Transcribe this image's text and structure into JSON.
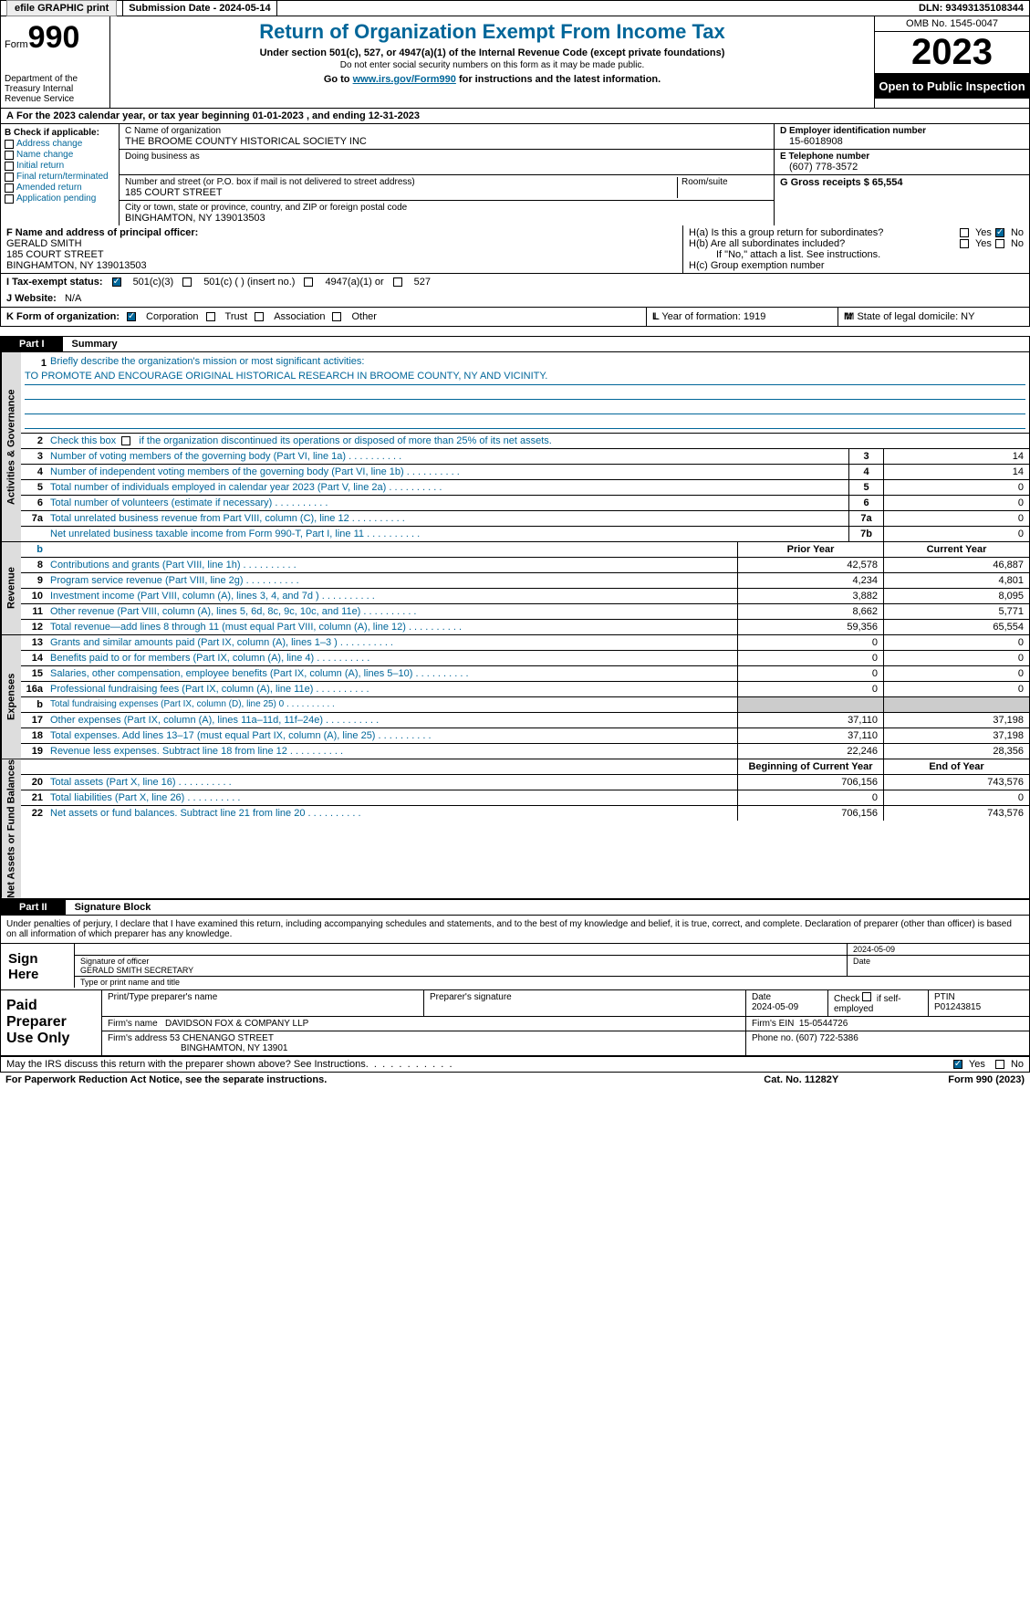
{
  "top": {
    "efile": "efile GRAPHIC print",
    "sub_label": "Submission Date - 2024-05-14",
    "dln": "DLN: 93493135108344"
  },
  "header": {
    "form_label": "Form",
    "form_num": "990",
    "dept": "Department of the Treasury Internal Revenue Service",
    "title": "Return of Organization Exempt From Income Tax",
    "subtitle": "Under section 501(c), 527, or 4947(a)(1) of the Internal Revenue Code (except private foundations)",
    "note1": "Do not enter social security numbers on this form as it may be made public.",
    "goto_pre": "Go to ",
    "goto_link": "www.irs.gov/Form990",
    "goto_post": " for instructions and the latest information.",
    "omb": "OMB No. 1545-0047",
    "year": "2023",
    "inspection": "Open to Public Inspection"
  },
  "row_a": {
    "a": "A",
    "text": "For the 2023 calendar year, or tax year beginning 01-01-2023    , and ending 12-31-2023"
  },
  "box_b": {
    "label": "B Check if applicable:",
    "items": [
      "Address change",
      "Name change",
      "Initial return",
      "Final return/terminated",
      "Amended return",
      "Application pending"
    ]
  },
  "box_c": {
    "name_label": "C Name of organization",
    "name": "THE BROOME COUNTY HISTORICAL SOCIETY INC",
    "dba_label": "Doing business as",
    "addr_label": "Number and street (or P.O. box if mail is not delivered to street address)",
    "addr": "185 COURT STREET",
    "room_label": "Room/suite",
    "city_label": "City or town, state or province, country, and ZIP or foreign postal code",
    "city": "BINGHAMTON, NY  139013503"
  },
  "box_d": {
    "label": "D Employer identification number",
    "val": "15-6018908"
  },
  "box_e": {
    "label": "E Telephone number",
    "val": "(607) 778-3572"
  },
  "box_g": {
    "label": "G Gross receipts $ 65,554"
  },
  "box_f": {
    "label": "F  Name and address of principal officer:",
    "l1": "GERALD SMITH",
    "l2": "185 COURT STREET",
    "l3": "BINGHAMTON, NY  139013503"
  },
  "box_h": {
    "ha": "H(a)  Is this a group return for subordinates?",
    "hb": "H(b)  Are all subordinates included?",
    "hb_note": "If \"No,\" attach a list. See instructions.",
    "hc": "H(c)  Group exemption number",
    "yes": "Yes",
    "no": "No"
  },
  "row_i": {
    "label": "I    Tax-exempt status:",
    "o1": "501(c)(3)",
    "o2": "501(c) (  ) (insert no.)",
    "o3": "4947(a)(1) or",
    "o4": "527"
  },
  "row_j": {
    "label": "J    Website:",
    "val": "N/A"
  },
  "row_k": {
    "label": "K Form of organization:",
    "o1": "Corporation",
    "o2": "Trust",
    "o3": "Association",
    "o4": "Other"
  },
  "row_l": {
    "label": "L Year of formation: 1919"
  },
  "row_m": {
    "label": "M State of legal domicile: NY"
  },
  "part1": {
    "tab": "Part I",
    "title": "Summary"
  },
  "sections": [
    {
      "side": "Activities & Governance",
      "rows": [
        {
          "type": "mission",
          "num": "1",
          "label": "Briefly describe the organization's mission or most significant activities:",
          "val": "TO PROMOTE AND ENCOURAGE ORIGINAL HISTORICAL RESEARCH IN BROOME COUNTY, NY AND VICINITY."
        },
        {
          "type": "check",
          "num": "2",
          "label": "Check this box      if the organization discontinued its operations or disposed of more than 25% of its net assets."
        },
        {
          "type": "single",
          "num": "3",
          "label": "Number of voting members of the governing body (Part VI, line 1a)",
          "box": "3",
          "val": "14"
        },
        {
          "type": "single",
          "num": "4",
          "label": "Number of independent voting members of the governing body (Part VI, line 1b)",
          "box": "4",
          "val": "14"
        },
        {
          "type": "single",
          "num": "5",
          "label": "Total number of individuals employed in calendar year 2023 (Part V, line 2a)",
          "box": "5",
          "val": "0"
        },
        {
          "type": "single",
          "num": "6",
          "label": "Total number of volunteers (estimate if necessary)",
          "box": "6",
          "val": "0"
        },
        {
          "type": "single",
          "num": "7a",
          "label": "Total unrelated business revenue from Part VIII, column (C), line 12",
          "box": "7a",
          "val": "0"
        },
        {
          "type": "single",
          "num": "",
          "label": "Net unrelated business taxable income from Form 990-T, Part I, line 11",
          "box": "7b",
          "val": "0"
        }
      ]
    },
    {
      "side": "Revenue",
      "hdr_b": "b",
      "hdr_prior": "Prior Year",
      "hdr_curr": "Current Year",
      "rows": [
        {
          "num": "8",
          "label": "Contributions and grants (Part VIII, line 1h)",
          "prior": "42,578",
          "curr": "46,887"
        },
        {
          "num": "9",
          "label": "Program service revenue (Part VIII, line 2g)",
          "prior": "4,234",
          "curr": "4,801"
        },
        {
          "num": "10",
          "label": "Investment income (Part VIII, column (A), lines 3, 4, and 7d )",
          "prior": "3,882",
          "curr": "8,095"
        },
        {
          "num": "11",
          "label": "Other revenue (Part VIII, column (A), lines 5, 6d, 8c, 9c, 10c, and 11e)",
          "prior": "8,662",
          "curr": "5,771"
        },
        {
          "num": "12",
          "label": "Total revenue—add lines 8 through 11 (must equal Part VIII, column (A), line 12)",
          "prior": "59,356",
          "curr": "65,554"
        }
      ]
    },
    {
      "side": "Expenses",
      "rows": [
        {
          "num": "13",
          "label": "Grants and similar amounts paid (Part IX, column (A), lines 1–3 )",
          "prior": "0",
          "curr": "0"
        },
        {
          "num": "14",
          "label": "Benefits paid to or for members (Part IX, column (A), line 4)",
          "prior": "0",
          "curr": "0"
        },
        {
          "num": "15",
          "label": "Salaries, other compensation, employee benefits (Part IX, column (A), lines 5–10)",
          "prior": "0",
          "curr": "0"
        },
        {
          "num": "16a",
          "label": "Professional fundraising fees (Part IX, column (A), line 11e)",
          "prior": "0",
          "curr": "0"
        },
        {
          "num": "b",
          "label": "Total fundraising expenses (Part IX, column (D), line 25) 0",
          "prior": "",
          "curr": "",
          "shade": true,
          "small": true
        },
        {
          "num": "17",
          "label": "Other expenses (Part IX, column (A), lines 11a–11d, 11f–24e)",
          "prior": "37,110",
          "curr": "37,198"
        },
        {
          "num": "18",
          "label": "Total expenses. Add lines 13–17 (must equal Part IX, column (A), line 25)",
          "prior": "37,110",
          "curr": "37,198"
        },
        {
          "num": "19",
          "label": "Revenue less expenses. Subtract line 18 from line 12",
          "prior": "22,246",
          "curr": "28,356"
        }
      ]
    },
    {
      "side": "Net Assets or Fund Balances",
      "hdr_prior": "Beginning of Current Year",
      "hdr_curr": "End of Year",
      "rows": [
        {
          "num": "20",
          "label": "Total assets (Part X, line 16)",
          "prior": "706,156",
          "curr": "743,576"
        },
        {
          "num": "21",
          "label": "Total liabilities (Part X, line 26)",
          "prior": "0",
          "curr": "0"
        },
        {
          "num": "22",
          "label": "Net assets or fund balances. Subtract line 21 from line 20",
          "prior": "706,156",
          "curr": "743,576"
        }
      ]
    }
  ],
  "part2": {
    "tab": "Part II",
    "title": "Signature Block"
  },
  "sig_text": "Under penalties of perjury, I declare that I have examined this return, including accompanying schedules and statements, and to the best of my knowledge and belief, it is true, correct, and complete. Declaration of preparer (other than officer) is based on all information of which preparer has any knowledge.",
  "sign": {
    "left": "Sign Here",
    "date": "2024-05-09",
    "sig_label": "Signature of officer",
    "name": "GERALD SMITH  SECRETARY",
    "date_label": "Date",
    "type_label": "Type or print name and title"
  },
  "prep": {
    "left": "Paid Preparer Use Only",
    "h1": "Print/Type preparer's name",
    "h2": "Preparer's signature",
    "h3": "Date",
    "h3v": "2024-05-09",
    "h4": "Check       if self-employed",
    "h5": "PTIN",
    "h5v": "P01243815",
    "firm_label": "Firm's name",
    "firm": "DAVIDSON FOX & COMPANY LLP",
    "ein_label": "Firm's EIN",
    "ein": "15-0544726",
    "addr_label": "Firm's address",
    "addr1": "53 CHENANGO STREET",
    "addr2": "BINGHAMTON, NY  13901",
    "phone_label": "Phone no.",
    "phone": "(607) 722-5386"
  },
  "bottom": {
    "q": "May the IRS discuss this return with the preparer shown above? See Instructions.",
    "yes": "Yes",
    "no": "No"
  },
  "footer": {
    "left": "For Paperwork Reduction Act Notice, see the separate instructions.",
    "mid": "Cat. No. 11282Y",
    "right_pre": "Form ",
    "right_b": "990",
    "right_post": " (2023)"
  }
}
